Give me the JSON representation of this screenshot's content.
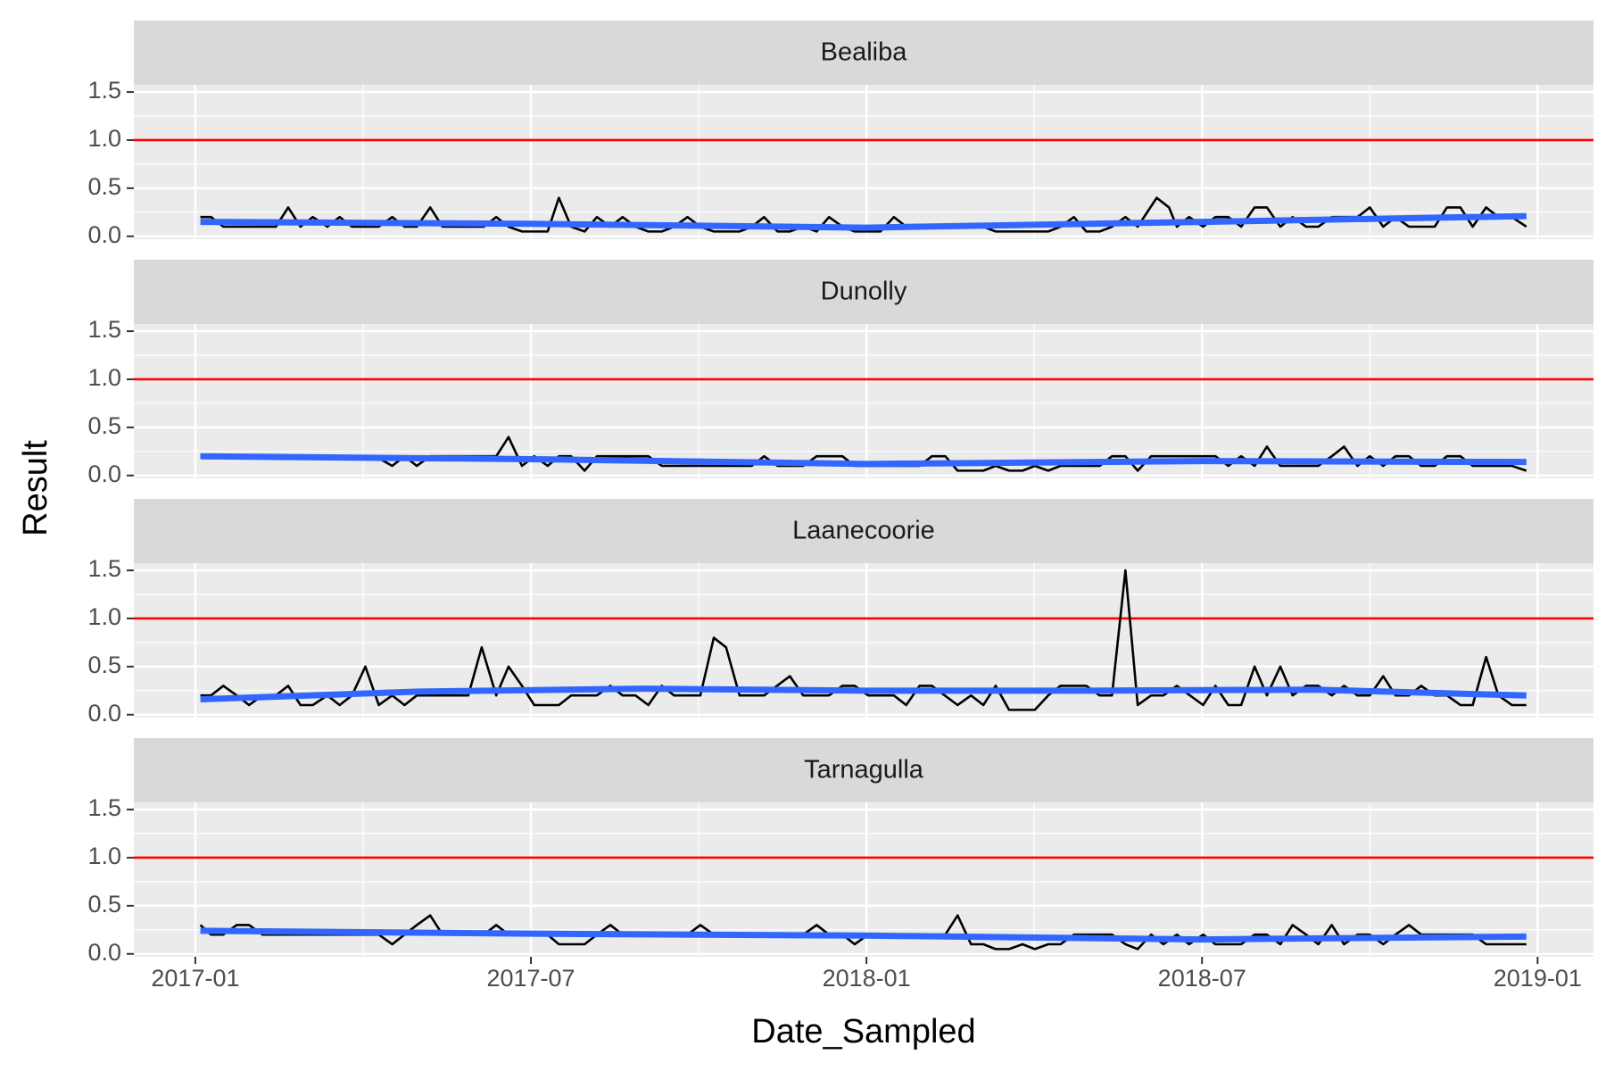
{
  "xlabel": "Date_Sampled",
  "ylabel": "Result",
  "chart_data": [
    {
      "type": "line",
      "title": "Bealiba",
      "xlim": [
        -1.1,
        25
      ],
      "ylim": [
        -0.03,
        1.575
      ],
      "yticks": [
        {
          "value": 0,
          "label": "0.0"
        },
        0.5,
        {
          "value": 1,
          "label": "1.0"
        },
        1.5
      ],
      "grid": true,
      "hline": 1,
      "hline_color": "#ff0000",
      "series": [
        {
          "color": "#000000",
          "x": [
            0.09,
            0.28,
            0.5,
            1.44,
            1.66,
            1.88,
            2.1,
            2.36,
            2.58,
            2.8,
            3.28,
            3.52,
            3.74,
            3.96,
            4.2,
            4.42,
            5.16,
            5.38,
            5.6,
            5.84,
            6.3,
            6.5,
            6.72,
            6.96,
            7.18,
            7.42,
            7.64,
            7.87,
            8.1,
            8.34,
            8.56,
            8.8,
            9.03,
            9.27,
            9.73,
            9.95,
            10.17,
            10.41,
            10.63,
            10.87,
            11.11,
            11.33,
            11.57,
            11.79,
            12.25,
            12.49,
            12.71,
            14.09,
            14.31,
            15.25,
            15.47,
            15.71,
            15.93,
            16.17,
            16.39,
            16.63,
            16.85,
            17.19,
            17.41,
            17.55,
            17.77,
            18.02,
            18.24,
            18.47,
            18.7,
            18.94,
            19.16,
            19.4,
            19.62,
            19.86,
            20.08,
            20.32,
            20.78,
            21.0,
            21.24,
            21.46,
            21.7,
            22.16,
            22.38,
            22.62,
            22.84,
            23.08,
            23.3,
            23.54,
            23.8
          ],
          "values": [
            0.2,
            0.2,
            0.1,
            0.1,
            0.3,
            0.1,
            0.2,
            0.1,
            0.2,
            0.1,
            0.1,
            0.2,
            0.1,
            0.1,
            0.3,
            0.1,
            0.1,
            0.2,
            0.1,
            0.05,
            0.05,
            0.4,
            0.1,
            0.05,
            0.2,
            0.1,
            0.2,
            0.1,
            0.05,
            0.05,
            0.1,
            0.2,
            0.1,
            0.05,
            0.05,
            0.1,
            0.2,
            0.05,
            0.05,
            0.1,
            0.05,
            0.2,
            0.1,
            0.05,
            0.05,
            0.2,
            0.1,
            0.1,
            0.05,
            0.05,
            0.1,
            0.2,
            0.05,
            0.05,
            0.1,
            0.2,
            0.1,
            0.4,
            0.3,
            0.1,
            0.2,
            0.1,
            0.2,
            0.2,
            0.1,
            0.3,
            0.3,
            0.1,
            0.2,
            0.1,
            0.1,
            0.2,
            0.2,
            0.3,
            0.1,
            0.2,
            0.1,
            0.1,
            0.3,
            0.3,
            0.1,
            0.3,
            0.2,
            0.2,
            0.1
          ]
        },
        {
          "color": "#3366ff",
          "x": [
            0.09,
            6,
            12,
            18,
            23.8
          ],
          "values": [
            0.15,
            0.13,
            0.09,
            0.15,
            0.21
          ]
        }
      ]
    },
    {
      "type": "line",
      "title": "Dunolly",
      "xlim": [
        -1.1,
        25
      ],
      "ylim": [
        -0.03,
        1.575
      ],
      "yticks": [
        {
          "value": 0,
          "label": "0.0"
        },
        0.5,
        {
          "value": 1,
          "label": "1.0"
        },
        1.5
      ],
      "grid": true,
      "hline": 1,
      "hline_color": "#ff0000",
      "series": [
        {
          "color": "#000000",
          "x": [
            0.09,
            3.22,
            3.52,
            3.74,
            3.96,
            4.2,
            5.38,
            5.6,
            5.84,
            6.06,
            6.3,
            6.5,
            6.72,
            6.96,
            7.18,
            8.1,
            8.34,
            9.95,
            10.17,
            10.41,
            10.87,
            11.11,
            11.57,
            11.79,
            12.95,
            13.17,
            13.41,
            13.63,
            14.09,
            14.31,
            14.55,
            14.79,
            15.01,
            15.25,
            15.47,
            16.17,
            16.39,
            16.63,
            16.85,
            17.09,
            18.24,
            18.47,
            18.7,
            18.94,
            19.16,
            19.4,
            20.08,
            20.32,
            20.54,
            20.78,
            21.0,
            21.24,
            21.46,
            21.7,
            21.92,
            22.16,
            22.38,
            22.62,
            22.84,
            23.54,
            23.8
          ],
          "values": [
            0.2,
            0.2,
            0.1,
            0.2,
            0.1,
            0.2,
            0.2,
            0.4,
            0.1,
            0.2,
            0.1,
            0.2,
            0.2,
            0.05,
            0.2,
            0.2,
            0.1,
            0.1,
            0.2,
            0.1,
            0.1,
            0.2,
            0.2,
            0.1,
            0.1,
            0.2,
            0.2,
            0.05,
            0.05,
            0.1,
            0.05,
            0.05,
            0.1,
            0.05,
            0.1,
            0.1,
            0.2,
            0.2,
            0.05,
            0.2,
            0.2,
            0.1,
            0.2,
            0.1,
            0.3,
            0.1,
            0.1,
            0.2,
            0.3,
            0.1,
            0.2,
            0.1,
            0.2,
            0.2,
            0.1,
            0.1,
            0.2,
            0.2,
            0.1,
            0.1,
            0.05
          ]
        },
        {
          "color": "#3366ff",
          "x": [
            0.09,
            6,
            12,
            18,
            23.8
          ],
          "values": [
            0.2,
            0.17,
            0.12,
            0.15,
            0.14
          ]
        }
      ]
    },
    {
      "type": "line",
      "title": "Laanecoorie",
      "xlim": [
        -1.1,
        25
      ],
      "ylim": [
        -0.03,
        1.575
      ],
      "yticks": [
        {
          "value": 0,
          "label": "0.0"
        },
        0.5,
        {
          "value": 1,
          "label": "1.0"
        },
        1.5
      ],
      "grid": true,
      "hline": 1,
      "hline_color": "#ff0000",
      "series": [
        {
          "color": "#000000",
          "x": [
            0.09,
            0.28,
            0.5,
            0.74,
            0.96,
            1.2,
            1.44,
            1.66,
            1.88,
            2.1,
            2.36,
            2.58,
            2.8,
            3.04,
            3.28,
            3.52,
            3.74,
            3.96,
            4.88,
            5.12,
            5.38,
            5.6,
            5.84,
            6.06,
            6.5,
            6.72,
            7.18,
            7.42,
            7.64,
            7.87,
            8.1,
            8.34,
            8.56,
            9.03,
            9.27,
            9.49,
            9.73,
            10.17,
            10.63,
            10.87,
            11.33,
            11.57,
            11.79,
            12.03,
            12.49,
            12.71,
            12.95,
            13.17,
            13.63,
            13.87,
            14.09,
            14.31,
            14.55,
            15.01,
            15.25,
            15.47,
            15.93,
            16.17,
            16.39,
            16.63,
            16.85,
            17.09,
            17.31,
            17.55,
            18.02,
            18.24,
            18.47,
            18.7,
            18.94,
            19.16,
            19.4,
            19.62,
            19.86,
            20.08,
            20.32,
            20.54,
            20.78,
            21.0,
            21.24,
            21.46,
            21.7,
            21.92,
            22.16,
            22.38,
            22.62,
            22.84,
            23.08,
            23.3,
            23.54,
            23.8
          ],
          "values": [
            0.2,
            0.2,
            0.3,
            0.2,
            0.1,
            0.2,
            0.2,
            0.3,
            0.1,
            0.1,
            0.2,
            0.1,
            0.2,
            0.5,
            0.1,
            0.2,
            0.1,
            0.2,
            0.2,
            0.7,
            0.2,
            0.5,
            0.3,
            0.1,
            0.1,
            0.2,
            0.2,
            0.3,
            0.2,
            0.2,
            0.1,
            0.3,
            0.2,
            0.2,
            0.8,
            0.7,
            0.2,
            0.2,
            0.4,
            0.2,
            0.2,
            0.3,
            0.3,
            0.2,
            0.2,
            0.1,
            0.3,
            0.3,
            0.1,
            0.2,
            0.1,
            0.3,
            0.05,
            0.05,
            0.2,
            0.3,
            0.3,
            0.2,
            0.2,
            1.5,
            0.1,
            0.2,
            0.2,
            0.3,
            0.1,
            0.3,
            0.1,
            0.1,
            0.5,
            0.2,
            0.5,
            0.2,
            0.3,
            0.3,
            0.2,
            0.3,
            0.2,
            0.2,
            0.4,
            0.2,
            0.2,
            0.3,
            0.2,
            0.2,
            0.1,
            0.1,
            0.6,
            0.2,
            0.1,
            0.1
          ]
        },
        {
          "color": "#3366ff",
          "x": [
            0.09,
            4,
            8,
            12,
            16,
            20,
            23.8
          ],
          "values": [
            0.16,
            0.24,
            0.27,
            0.25,
            0.25,
            0.26,
            0.2
          ]
        }
      ]
    },
    {
      "type": "line",
      "title": "Tarnagulla",
      "xlim": [
        -1.1,
        25
      ],
      "ylim": [
        -0.03,
        1.575
      ],
      "yticks": [
        {
          "value": 0,
          "label": "0.0"
        },
        0.5,
        {
          "value": 1,
          "label": "1.0"
        },
        1.5
      ],
      "grid": true,
      "xticks": [
        {
          "value": 0,
          "label": "2017-01"
        },
        {
          "value": 6,
          "label": "2017-07"
        },
        {
          "value": 12,
          "label": "2018-01"
        },
        {
          "value": 18,
          "label": "2018-07"
        },
        {
          "value": 24,
          "label": "2019-01"
        }
      ],
      "hline": 1,
      "hline_color": "#ff0000",
      "series": [
        {
          "color": "#000000",
          "x": [
            0.09,
            0.28,
            0.5,
            0.74,
            0.96,
            1.2,
            3.28,
            3.52,
            3.74,
            3.96,
            4.2,
            4.42,
            5.16,
            5.38,
            5.6,
            6.3,
            6.5,
            6.96,
            7.18,
            7.42,
            7.64,
            8.8,
            9.03,
            9.27,
            10.87,
            11.11,
            11.33,
            11.57,
            11.79,
            12.03,
            13.41,
            13.63,
            13.87,
            14.09,
            14.31,
            14.55,
            14.79,
            15.01,
            15.25,
            15.47,
            15.71,
            16.39,
            16.63,
            16.85,
            17.09,
            17.31,
            17.55,
            17.77,
            18.02,
            18.24,
            18.7,
            18.94,
            19.16,
            19.4,
            19.62,
            19.86,
            20.08,
            20.32,
            20.54,
            20.78,
            21.0,
            21.24,
            21.46,
            21.7,
            21.92,
            22.84,
            23.08,
            23.8
          ],
          "values": [
            0.3,
            0.2,
            0.2,
            0.3,
            0.3,
            0.2,
            0.2,
            0.1,
            0.2,
            0.3,
            0.4,
            0.2,
            0.2,
            0.3,
            0.2,
            0.2,
            0.1,
            0.1,
            0.2,
            0.3,
            0.2,
            0.2,
            0.3,
            0.2,
            0.2,
            0.3,
            0.2,
            0.2,
            0.1,
            0.2,
            0.2,
            0.4,
            0.1,
            0.1,
            0.05,
            0.05,
            0.1,
            0.05,
            0.1,
            0.1,
            0.2,
            0.2,
            0.1,
            0.05,
            0.2,
            0.1,
            0.2,
            0.1,
            0.2,
            0.1,
            0.1,
            0.2,
            0.2,
            0.1,
            0.3,
            0.2,
            0.1,
            0.3,
            0.1,
            0.2,
            0.2,
            0.1,
            0.2,
            0.3,
            0.2,
            0.2,
            0.1,
            0.1
          ]
        },
        {
          "color": "#3366ff",
          "x": [
            0.09,
            6,
            12,
            18,
            23.8
          ],
          "values": [
            0.24,
            0.21,
            0.19,
            0.15,
            0.18
          ]
        }
      ]
    }
  ]
}
